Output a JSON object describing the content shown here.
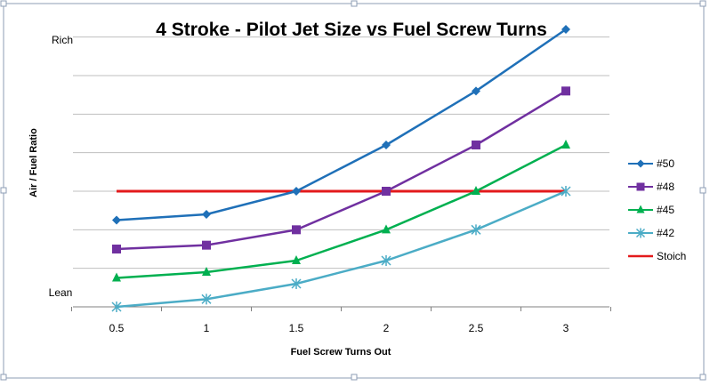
{
  "chart_data": {
    "type": "line",
    "title": "4 Stroke - Pilot Jet Size vs Fuel Screw Turns",
    "xlabel": "Fuel Screw Turns Out",
    "ylabel": "Air / Fuel Ratio",
    "y_top_label": "Rich",
    "y_bottom_label": "Lean",
    "ylim": [
      0,
      7.5
    ],
    "grid": true,
    "legend_position": "right",
    "categories": [
      "0.5",
      "1",
      "1.5",
      "2",
      "2.5",
      "3"
    ],
    "series": [
      {
        "name": "#50",
        "color": "#1F70B8",
        "marker": "diamond",
        "values": [
          2.25,
          2.4,
          3.0,
          4.2,
          5.6,
          7.2
        ]
      },
      {
        "name": "#48",
        "color": "#7030A0",
        "marker": "square",
        "values": [
          1.5,
          1.6,
          2.0,
          3.0,
          4.2,
          5.6
        ]
      },
      {
        "name": "#45",
        "color": "#00B050",
        "marker": "triangle",
        "values": [
          0.75,
          0.9,
          1.2,
          2.0,
          3.0,
          4.2
        ]
      },
      {
        "name": "#42",
        "color": "#4BACC6",
        "marker": "star",
        "values": [
          0.0,
          0.2,
          0.6,
          1.2,
          2.0,
          3.0
        ]
      },
      {
        "name": "Stoich",
        "color": "#E31A1C",
        "marker": "none",
        "values": [
          3.0,
          3.0,
          3.0,
          3.0,
          3.0,
          3.0
        ]
      }
    ]
  }
}
